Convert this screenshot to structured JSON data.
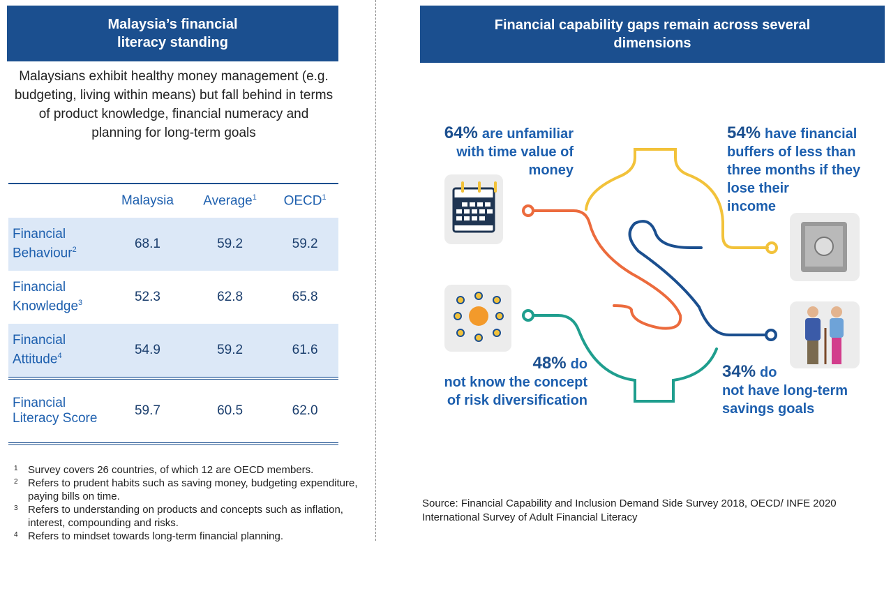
{
  "left": {
    "header": "Malaysia’s financial literacy standing",
    "intro": "Malaysians exhibit healthy money management (e.g. budgeting, living within means) but fall behind in terms of product knowledge, financial numeracy and planning for long-term goals",
    "table": {
      "columns": [
        {
          "label": "Malaysia"
        },
        {
          "label": "Average",
          "note": "1"
        },
        {
          "label": "OECD",
          "note": "1"
        }
      ],
      "rows": [
        {
          "label": "Financial Behaviour",
          "note": "2",
          "values": [
            "68.1",
            "59.2",
            "59.2"
          ]
        },
        {
          "label": "Financial Knowledge",
          "note": "3",
          "values": [
            "52.3",
            "62.8",
            "65.8"
          ]
        },
        {
          "label": "Financial Attitude",
          "note": "4",
          "values": [
            "54.9",
            "59.2",
            "61.6"
          ]
        },
        {
          "label": "Financial Literacy Score",
          "values": [
            "59.7",
            "60.5",
            "62.0"
          ]
        }
      ]
    },
    "footnotes": [
      {
        "marker": "1",
        "text": "Survey covers 26 countries, of which 12 are OECD members."
      },
      {
        "marker": "2",
        "text": "Refers to prudent habits such as saving money, budgeting expenditure, paying bills on time."
      },
      {
        "marker": "3",
        "text": "Refers to understanding on products and concepts such as inflation, interest, compounding and risks."
      },
      {
        "marker": "4",
        "text": "Refers to mindset towards long-term financial planning."
      }
    ]
  },
  "right": {
    "header": "Financial capability gaps remain across several dimensions",
    "stats": [
      {
        "value": "64%",
        "lines": [
          "are unfamiliar",
          "with time value of",
          "money"
        ]
      },
      {
        "value": "54%",
        "lines": [
          "have financial",
          "buffers of less than",
          "three months if they",
          "lose their",
          "income"
        ]
      },
      {
        "value": "48%",
        "lines": [
          "do",
          "not know the concept",
          "of risk diversification"
        ]
      },
      {
        "value": "34%",
        "lines": [
          "do",
          "not have long-term",
          "savings goals"
        ]
      }
    ],
    "source": "Source: Financial Capability and Inclusion Demand Side Survey 2018, OECD/ INFE 2020 International Survey of Adult Financial Literacy"
  }
}
